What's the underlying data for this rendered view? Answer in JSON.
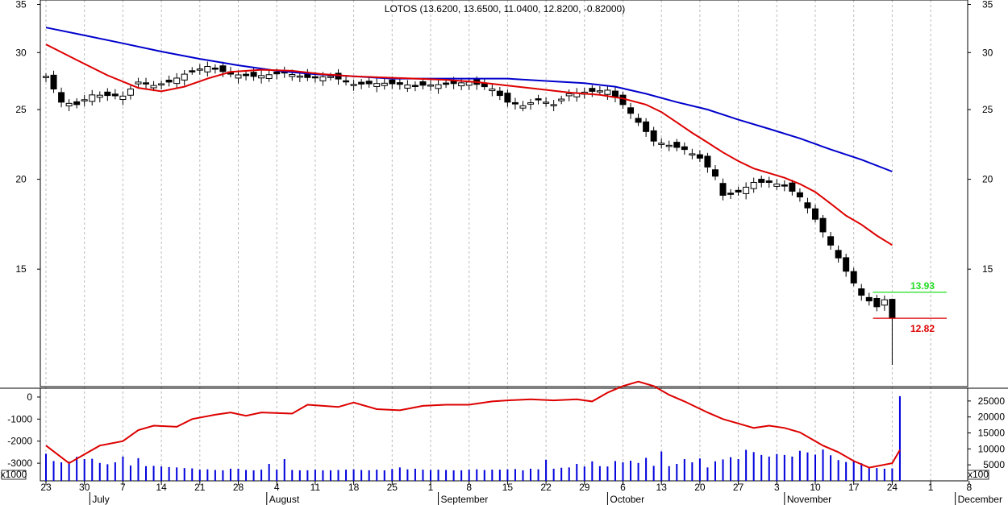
{
  "chart_data": {
    "type": "candlestick",
    "title": "LOTOS (13.6200, 13.6500, 11.0400, 12.8200, -0.82000)",
    "price_axis": {
      "ticks": [
        15,
        20,
        25,
        30,
        35
      ],
      "scale": "log",
      "range": [
        10.3,
        35.5
      ]
    },
    "indicator_axis_left": {
      "ticks": [
        0,
        -1000,
        -2000,
        -3000
      ],
      "unit_label": "x1000",
      "range": [
        -3800,
        400
      ]
    },
    "volume_axis_right": {
      "ticks": [
        5000,
        10000,
        15000,
        20000,
        25000
      ],
      "unit_label": "x100",
      "range": [
        0,
        29000
      ]
    },
    "x_axis": {
      "day_ticks": [
        {
          "i": 0,
          "label": "23"
        },
        {
          "i": 5,
          "label": "30"
        },
        {
          "i": 10,
          "label": "7"
        },
        {
          "i": 15,
          "label": "14"
        },
        {
          "i": 20,
          "label": "21"
        },
        {
          "i": 25,
          "label": "28"
        },
        {
          "i": 30,
          "label": "4"
        },
        {
          "i": 35,
          "label": "11"
        },
        {
          "i": 40,
          "label": "18"
        },
        {
          "i": 45,
          "label": "25"
        },
        {
          "i": 50,
          "label": "1"
        },
        {
          "i": 55,
          "label": "8"
        },
        {
          "i": 60,
          "label": "15"
        },
        {
          "i": 65,
          "label": "22"
        },
        {
          "i": 70,
          "label": "29"
        },
        {
          "i": 75,
          "label": "6"
        },
        {
          "i": 80,
          "label": "13"
        },
        {
          "i": 85,
          "label": "20"
        },
        {
          "i": 90,
          "label": "27"
        },
        {
          "i": 95,
          "label": "3"
        },
        {
          "i": 100,
          "label": "10"
        },
        {
          "i": 105,
          "label": "17"
        },
        {
          "i": 110,
          "label": "24"
        },
        {
          "i": 115,
          "label": "1"
        },
        {
          "i": 120,
          "label": "8"
        }
      ],
      "month_ticks": [
        {
          "i": 5.7,
          "label": "July"
        },
        {
          "i": 28.7,
          "label": "August"
        },
        {
          "i": 51,
          "label": "September"
        },
        {
          "i": 73,
          "label": "October"
        },
        {
          "i": 96,
          "label": "November"
        },
        {
          "i": 118.2,
          "label": "December"
        }
      ]
    },
    "levels": [
      {
        "value": 13.93,
        "label": "13.93",
        "color": "#22dd22"
      },
      {
        "value": 12.82,
        "label": "12.82",
        "color": "#dd0000"
      }
    ],
    "series": {
      "ma_short_color": "#dd0000",
      "ma_long_color": "#0000cc",
      "indicator_color": "#dd0000",
      "volume_color": "#0000dd",
      "ma_short": [
        [
          0,
          30.8
        ],
        [
          4,
          29.3
        ],
        [
          8,
          27.9
        ],
        [
          12,
          26.8
        ],
        [
          15,
          26.5
        ],
        [
          18,
          26.9
        ],
        [
          21,
          27.6
        ],
        [
          24,
          28.2
        ],
        [
          28,
          28.4
        ],
        [
          32,
          28.3
        ],
        [
          36,
          28.0
        ],
        [
          40,
          27.8
        ],
        [
          44,
          27.7
        ],
        [
          48,
          27.6
        ],
        [
          52,
          27.5
        ],
        [
          56,
          27.3
        ],
        [
          60,
          27.0
        ],
        [
          64,
          26.7
        ],
        [
          68,
          26.4
        ],
        [
          72,
          26.2
        ],
        [
          75,
          25.9
        ],
        [
          78,
          25.4
        ],
        [
          80,
          24.8
        ],
        [
          82,
          24.0
        ],
        [
          84,
          23.2
        ],
        [
          86,
          22.5
        ],
        [
          88,
          21.8
        ],
        [
          90,
          21.2
        ],
        [
          92,
          20.7
        ],
        [
          94,
          20.4
        ],
        [
          96,
          20.1
        ],
        [
          98,
          19.7
        ],
        [
          100,
          19.2
        ],
        [
          102,
          18.5
        ],
        [
          104,
          17.8
        ],
        [
          106,
          17.3
        ],
        [
          108,
          16.7
        ],
        [
          110,
          16.2
        ]
      ],
      "ma_long": [
        [
          0,
          32.5
        ],
        [
          5,
          31.7
        ],
        [
          10,
          30.9
        ],
        [
          15,
          30.1
        ],
        [
          20,
          29.4
        ],
        [
          25,
          28.8
        ],
        [
          30,
          28.3
        ],
        [
          35,
          28.0
        ],
        [
          40,
          27.8
        ],
        [
          45,
          27.6
        ],
        [
          50,
          27.6
        ],
        [
          55,
          27.6
        ],
        [
          60,
          27.6
        ],
        [
          65,
          27.4
        ],
        [
          70,
          27.2
        ],
        [
          74,
          26.9
        ],
        [
          78,
          26.3
        ],
        [
          82,
          25.6
        ],
        [
          86,
          25.0
        ],
        [
          90,
          24.2
        ],
        [
          94,
          23.5
        ],
        [
          98,
          22.8
        ],
        [
          102,
          22.0
        ],
        [
          106,
          21.3
        ],
        [
          110,
          20.5
        ]
      ],
      "indicator": [
        [
          0,
          -2200
        ],
        [
          3,
          -3000
        ],
        [
          5,
          -2600
        ],
        [
          7,
          -2200
        ],
        [
          10,
          -2000
        ],
        [
          12,
          -1500
        ],
        [
          14,
          -1300
        ],
        [
          17,
          -1350
        ],
        [
          19,
          -1000
        ],
        [
          22,
          -800
        ],
        [
          24,
          -700
        ],
        [
          26,
          -850
        ],
        [
          28,
          -700
        ],
        [
          32,
          -750
        ],
        [
          34,
          -350
        ],
        [
          36,
          -400
        ],
        [
          38,
          -450
        ],
        [
          40,
          -250
        ],
        [
          43,
          -550
        ],
        [
          46,
          -600
        ],
        [
          49,
          -400
        ],
        [
          52,
          -350
        ],
        [
          55,
          -350
        ],
        [
          58,
          -200
        ],
        [
          60,
          -150
        ],
        [
          63,
          -100
        ],
        [
          66,
          -150
        ],
        [
          69,
          -100
        ],
        [
          71,
          -200
        ],
        [
          73,
          200
        ],
        [
          75,
          500
        ],
        [
          77,
          700
        ],
        [
          79,
          500
        ],
        [
          81,
          100
        ],
        [
          83,
          -200
        ],
        [
          86,
          -700
        ],
        [
          88,
          -1000
        ],
        [
          90,
          -1200
        ],
        [
          92,
          -1400
        ],
        [
          94,
          -1300
        ],
        [
          96,
          -1400
        ],
        [
          98,
          -1600
        ],
        [
          101,
          -2200
        ],
        [
          103,
          -2500
        ],
        [
          105,
          -2900
        ],
        [
          107,
          -3200
        ],
        [
          110,
          -3000
        ],
        [
          111,
          -2400
        ]
      ],
      "volume": [
        8500,
        6200,
        5800,
        6000,
        7500,
        6800,
        6900,
        5600,
        5200,
        5800,
        7600,
        4800,
        7100,
        4600,
        4700,
        4500,
        4300,
        4200,
        4000,
        3900,
        3500,
        3600,
        3400,
        3300,
        3800,
        3800,
        3400,
        3300,
        3500,
        5300,
        3500,
        6800,
        3400,
        3300,
        3300,
        3500,
        3300,
        3300,
        3400,
        3500,
        3600,
        3400,
        3300,
        3500,
        3300,
        3700,
        4200,
        3600,
        3800,
        3500,
        3400,
        3500,
        3400,
        3300,
        3300,
        3500,
        3600,
        3400,
        3500,
        3500,
        3600,
        3700,
        3300,
        3800,
        3600,
        6600,
        3800,
        4100,
        4200,
        5300,
        4500,
        6100,
        4600,
        4500,
        6200,
        5800,
        6300,
        5600,
        7200,
        4700,
        9200,
        4600,
        5300,
        6800,
        5800,
        7000,
        4200,
        6100,
        6700,
        7400,
        6800,
        9700,
        9000,
        8100,
        7600,
        8400,
        8100,
        7600,
        9400,
        8900,
        8200,
        9800,
        8000,
        6500,
        5900,
        6200,
        5500,
        4400,
        4000,
        3800,
        3900,
        26500
      ]
    }
  }
}
